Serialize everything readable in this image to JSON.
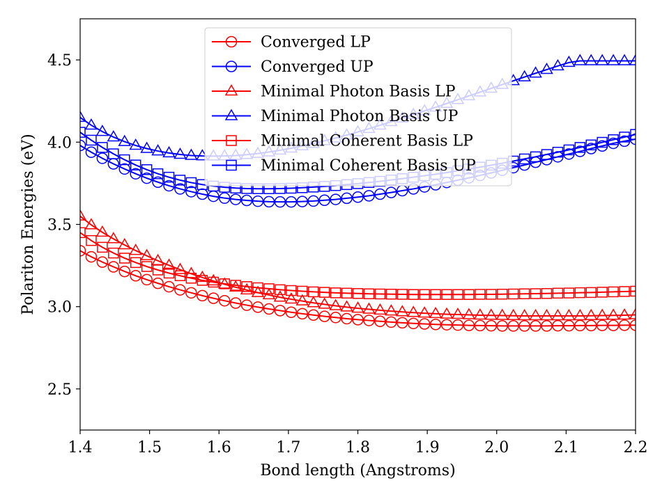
{
  "chart_data": {
    "type": "line",
    "xlabel": "Bond length (Angstroms)",
    "ylabel": "Polariton Energies (eV)",
    "xlim": [
      1.4,
      2.2
    ],
    "ylim": [
      2.25,
      4.75
    ],
    "xticks": [
      "1.4",
      "1.5",
      "1.6",
      "1.7",
      "1.8",
      "1.9",
      "2.0",
      "2.1",
      "2.2"
    ],
    "yticks": [
      "2.5",
      "3.0",
      "3.5",
      "4.0",
      "4.5"
    ],
    "grid": false,
    "legend_position": "upper-center",
    "x": [
      1.4,
      1.416,
      1.432,
      1.448,
      1.464,
      1.48,
      1.496,
      1.512,
      1.528,
      1.544,
      1.56,
      1.576,
      1.592,
      1.608,
      1.624,
      1.64,
      1.656,
      1.672,
      1.688,
      1.704,
      1.72,
      1.736,
      1.752,
      1.768,
      1.784,
      1.8,
      1.816,
      1.832,
      1.848,
      1.864,
      1.88,
      1.896,
      1.912,
      1.928,
      1.944,
      1.96,
      1.976,
      1.992,
      2.008,
      2.024,
      2.04,
      2.056,
      2.072,
      2.088,
      2.104,
      2.12,
      2.136,
      2.152,
      2.168,
      2.184,
      2.2
    ],
    "series": [
      {
        "name": "Converged LP",
        "color": "#ff0000",
        "marker": "circle",
        "values": [
          3.34,
          3.303,
          3.271,
          3.242,
          3.214,
          3.188,
          3.164,
          3.142,
          3.121,
          3.102,
          3.084,
          3.067,
          3.051,
          3.036,
          3.022,
          3.009,
          2.997,
          2.986,
          2.976,
          2.966,
          2.957,
          2.949,
          2.941,
          2.934,
          2.927,
          2.921,
          2.916,
          2.911,
          2.906,
          2.902,
          2.898,
          2.895,
          2.892,
          2.89,
          2.888,
          2.886,
          2.885,
          2.884,
          2.883,
          2.883,
          2.883,
          2.883,
          2.883,
          2.884,
          2.884,
          2.885,
          2.885,
          2.886,
          2.886,
          2.887,
          2.887
        ]
      },
      {
        "name": "Converged UP",
        "color": "#0000ff",
        "marker": "circle",
        "values": [
          3.98,
          3.939,
          3.902,
          3.868,
          3.837,
          3.808,
          3.781,
          3.757,
          3.735,
          3.716,
          3.699,
          3.684,
          3.671,
          3.66,
          3.652,
          3.646,
          3.641,
          3.638,
          3.637,
          3.637,
          3.639,
          3.642,
          3.647,
          3.652,
          3.659,
          3.666,
          3.674,
          3.684,
          3.694,
          3.705,
          3.716,
          3.728,
          3.741,
          3.755,
          3.769,
          3.783,
          3.798,
          3.813,
          3.829,
          3.845,
          3.861,
          3.878,
          3.894,
          3.911,
          3.928,
          3.944,
          3.961,
          3.977,
          3.993,
          4.006,
          4.018
        ]
      },
      {
        "name": "Minimal Photon Basis LP",
        "color": "#ff0000",
        "marker": "triangle",
        "values": [
          3.55,
          3.497,
          3.452,
          3.412,
          3.375,
          3.341,
          3.309,
          3.279,
          3.251,
          3.225,
          3.2,
          3.177,
          3.156,
          3.136,
          3.118,
          3.101,
          3.085,
          3.071,
          3.057,
          3.045,
          3.034,
          3.023,
          3.014,
          3.005,
          2.997,
          2.99,
          2.984,
          2.978,
          2.973,
          2.968,
          2.964,
          2.96,
          2.957,
          2.954,
          2.952,
          2.95,
          2.948,
          2.947,
          2.946,
          2.945,
          2.944,
          2.944,
          2.944,
          2.944,
          2.944,
          2.944,
          2.945,
          2.946,
          2.947,
          2.948,
          2.95
        ]
      },
      {
        "name": "Minimal Photon Basis UP",
        "color": "#0000ff",
        "marker": "triangle",
        "values": [
          4.15,
          4.103,
          4.064,
          4.031,
          4.003,
          3.98,
          3.961,
          3.946,
          3.934,
          3.925,
          3.919,
          3.916,
          3.915,
          3.916,
          3.919,
          3.924,
          3.931,
          3.94,
          3.951,
          3.963,
          3.977,
          3.992,
          4.008,
          4.025,
          4.043,
          4.062,
          4.082,
          4.103,
          4.124,
          4.146,
          4.168,
          4.19,
          4.212,
          4.235,
          4.258,
          4.281,
          4.304,
          4.327,
          4.35,
          4.373,
          4.396,
          4.419,
          4.441,
          4.463,
          4.484,
          4.494,
          4.494,
          4.494,
          4.494,
          4.494,
          4.494
        ]
      },
      {
        "name": "Minimal Coherent Basis LP",
        "color": "#ff0000",
        "marker": "square",
        "values": [
          3.45,
          3.402,
          3.361,
          3.326,
          3.295,
          3.268,
          3.244,
          3.223,
          3.204,
          3.188,
          3.173,
          3.16,
          3.149,
          3.139,
          3.13,
          3.122,
          3.115,
          3.109,
          3.103,
          3.098,
          3.094,
          3.09,
          3.087,
          3.084,
          3.082,
          3.08,
          3.078,
          3.077,
          3.076,
          3.075,
          3.074,
          3.074,
          3.074,
          3.074,
          3.074,
          3.074,
          3.075,
          3.075,
          3.076,
          3.077,
          3.078,
          3.079,
          3.08,
          3.082,
          3.083,
          3.085,
          3.086,
          3.088,
          3.09,
          3.092,
          3.094
        ]
      },
      {
        "name": "Minimal Coherent Basis UP",
        "color": "#0000ff",
        "marker": "square",
        "values": [
          4.06,
          4.012,
          3.968,
          3.929,
          3.893,
          3.861,
          3.833,
          3.808,
          3.787,
          3.769,
          3.754,
          3.742,
          3.733,
          3.726,
          3.721,
          3.718,
          3.717,
          3.717,
          3.718,
          3.72,
          3.723,
          3.727,
          3.731,
          3.736,
          3.742,
          3.748,
          3.755,
          3.762,
          3.77,
          3.778,
          3.787,
          3.796,
          3.805,
          3.815,
          3.826,
          3.837,
          3.848,
          3.86,
          3.872,
          3.885,
          3.898,
          3.911,
          3.925,
          3.939,
          3.953,
          3.968,
          3.983,
          3.999,
          4.015,
          4.031,
          4.047
        ]
      }
    ]
  }
}
